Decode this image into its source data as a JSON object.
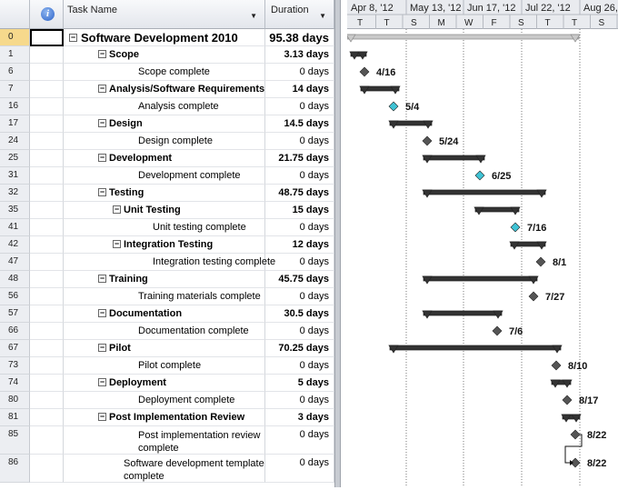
{
  "columns": {
    "id_header": "",
    "indicator_header": "i",
    "task_header": "Task Name",
    "duration_header": "Duration"
  },
  "tasks": [
    {
      "id": "0",
      "name": "Software Development 2010",
      "duration": "95.38 days",
      "level": 0,
      "summary": true,
      "top": true
    },
    {
      "id": "1",
      "name": "Scope",
      "duration": "3.13 days",
      "level": 1,
      "summary": true
    },
    {
      "id": "6",
      "name": "Scope complete",
      "duration": "0 days",
      "level": 2,
      "summary": false
    },
    {
      "id": "7",
      "name": "Analysis/Software Requirements",
      "duration": "14 days",
      "level": 1,
      "summary": true
    },
    {
      "id": "16",
      "name": "Analysis complete",
      "duration": "0 days",
      "level": 2,
      "summary": false
    },
    {
      "id": "17",
      "name": "Design",
      "duration": "14.5 days",
      "level": 1,
      "summary": true
    },
    {
      "id": "24",
      "name": "Design complete",
      "duration": "0 days",
      "level": 2,
      "summary": false
    },
    {
      "id": "25",
      "name": "Development",
      "duration": "21.75 days",
      "level": 1,
      "summary": true
    },
    {
      "id": "31",
      "name": "Development complete",
      "duration": "0 days",
      "level": 2,
      "summary": false
    },
    {
      "id": "32",
      "name": "Testing",
      "duration": "48.75 days",
      "level": 1,
      "summary": true
    },
    {
      "id": "35",
      "name": "Unit Testing",
      "duration": "15 days",
      "level": 2,
      "summary": true
    },
    {
      "id": "41",
      "name": "Unit testing complete",
      "duration": "0 days",
      "level": 3,
      "summary": false
    },
    {
      "id": "42",
      "name": "Integration Testing",
      "duration": "12 days",
      "level": 2,
      "summary": true
    },
    {
      "id": "47",
      "name": "Integration testing complete",
      "duration": "0 days",
      "level": 3,
      "summary": false
    },
    {
      "id": "48",
      "name": "Training",
      "duration": "45.75 days",
      "level": 1,
      "summary": true
    },
    {
      "id": "56",
      "name": "Training materials complete",
      "duration": "0 days",
      "level": 2,
      "summary": false
    },
    {
      "id": "57",
      "name": "Documentation",
      "duration": "30.5 days",
      "level": 1,
      "summary": true
    },
    {
      "id": "66",
      "name": "Documentation complete",
      "duration": "0 days",
      "level": 2,
      "summary": false
    },
    {
      "id": "67",
      "name": "Pilot",
      "duration": "70.25 days",
      "level": 1,
      "summary": true
    },
    {
      "id": "73",
      "name": "Pilot complete",
      "duration": "0 days",
      "level": 2,
      "summary": false
    },
    {
      "id": "74",
      "name": "Deployment",
      "duration": "5 days",
      "level": 1,
      "summary": true
    },
    {
      "id": "80",
      "name": "Deployment complete",
      "duration": "0 days",
      "level": 2,
      "summary": false
    },
    {
      "id": "81",
      "name": "Post Implementation Review",
      "duration": "3 days",
      "level": 1,
      "summary": true
    },
    {
      "id": "85",
      "name": "Post implementation review complete",
      "duration": "0 days",
      "level": 2,
      "summary": false,
      "wrap": true
    },
    {
      "id": "86",
      "name": "Software development template complete",
      "duration": "0 days",
      "level": 1,
      "summary": false,
      "wrap": true
    }
  ],
  "timescale": {
    "weeks": [
      "Apr 8, '12",
      "May 13, '12",
      "Jun 17, '12",
      "Jul 22, '12",
      "Aug 26,"
    ],
    "days": [
      "T",
      "T",
      "S",
      "M",
      "W",
      "F",
      "S",
      "T",
      "T",
      "S"
    ]
  },
  "gantt": [
    {
      "row": 0,
      "kind": "summary",
      "start": 0,
      "end": 255
    },
    {
      "row": 1,
      "kind": "summary",
      "start": 4,
      "end": 21
    },
    {
      "row": 2,
      "kind": "milestone",
      "at": 19,
      "label": "4/16",
      "critical": true
    },
    {
      "row": 3,
      "kind": "summary",
      "start": 15,
      "end": 57
    },
    {
      "row": 4,
      "kind": "milestone",
      "at": 51,
      "label": "5/4",
      "critical": false
    },
    {
      "row": 5,
      "kind": "summary",
      "start": 47,
      "end": 93
    },
    {
      "row": 6,
      "kind": "milestone",
      "at": 88,
      "label": "5/24",
      "critical": true
    },
    {
      "row": 7,
      "kind": "summary",
      "start": 84,
      "end": 151
    },
    {
      "row": 8,
      "kind": "milestone",
      "at": 146,
      "label": "6/25",
      "critical": false
    },
    {
      "row": 9,
      "kind": "summary",
      "start": 84,
      "end": 218
    },
    {
      "row": 10,
      "kind": "summary",
      "start": 141,
      "end": 189
    },
    {
      "row": 11,
      "kind": "milestone",
      "at": 185,
      "label": "7/16",
      "critical": false
    },
    {
      "row": 12,
      "kind": "summary",
      "start": 180,
      "end": 218
    },
    {
      "row": 13,
      "kind": "milestone",
      "at": 213,
      "label": "8/1",
      "critical": true
    },
    {
      "row": 14,
      "kind": "summary",
      "start": 84,
      "end": 209
    },
    {
      "row": 15,
      "kind": "milestone",
      "at": 205,
      "label": "7/27",
      "critical": true
    },
    {
      "row": 16,
      "kind": "summary",
      "start": 84,
      "end": 170
    },
    {
      "row": 17,
      "kind": "milestone",
      "at": 165,
      "label": "7/6",
      "critical": true
    },
    {
      "row": 18,
      "kind": "summary",
      "start": 47,
      "end": 235
    },
    {
      "row": 19,
      "kind": "milestone",
      "at": 230,
      "label": "8/10",
      "critical": true
    },
    {
      "row": 20,
      "kind": "summary",
      "start": 225,
      "end": 246
    },
    {
      "row": 21,
      "kind": "milestone",
      "at": 242,
      "label": "8/17",
      "critical": true
    },
    {
      "row": 22,
      "kind": "summary",
      "start": 237,
      "end": 256
    },
    {
      "row": 23,
      "kind": "milestone",
      "at": 251,
      "label": "8/22",
      "critical": true
    },
    {
      "row": 24,
      "kind": "milestone",
      "at": 251,
      "label": "8/22",
      "critical": true
    }
  ]
}
